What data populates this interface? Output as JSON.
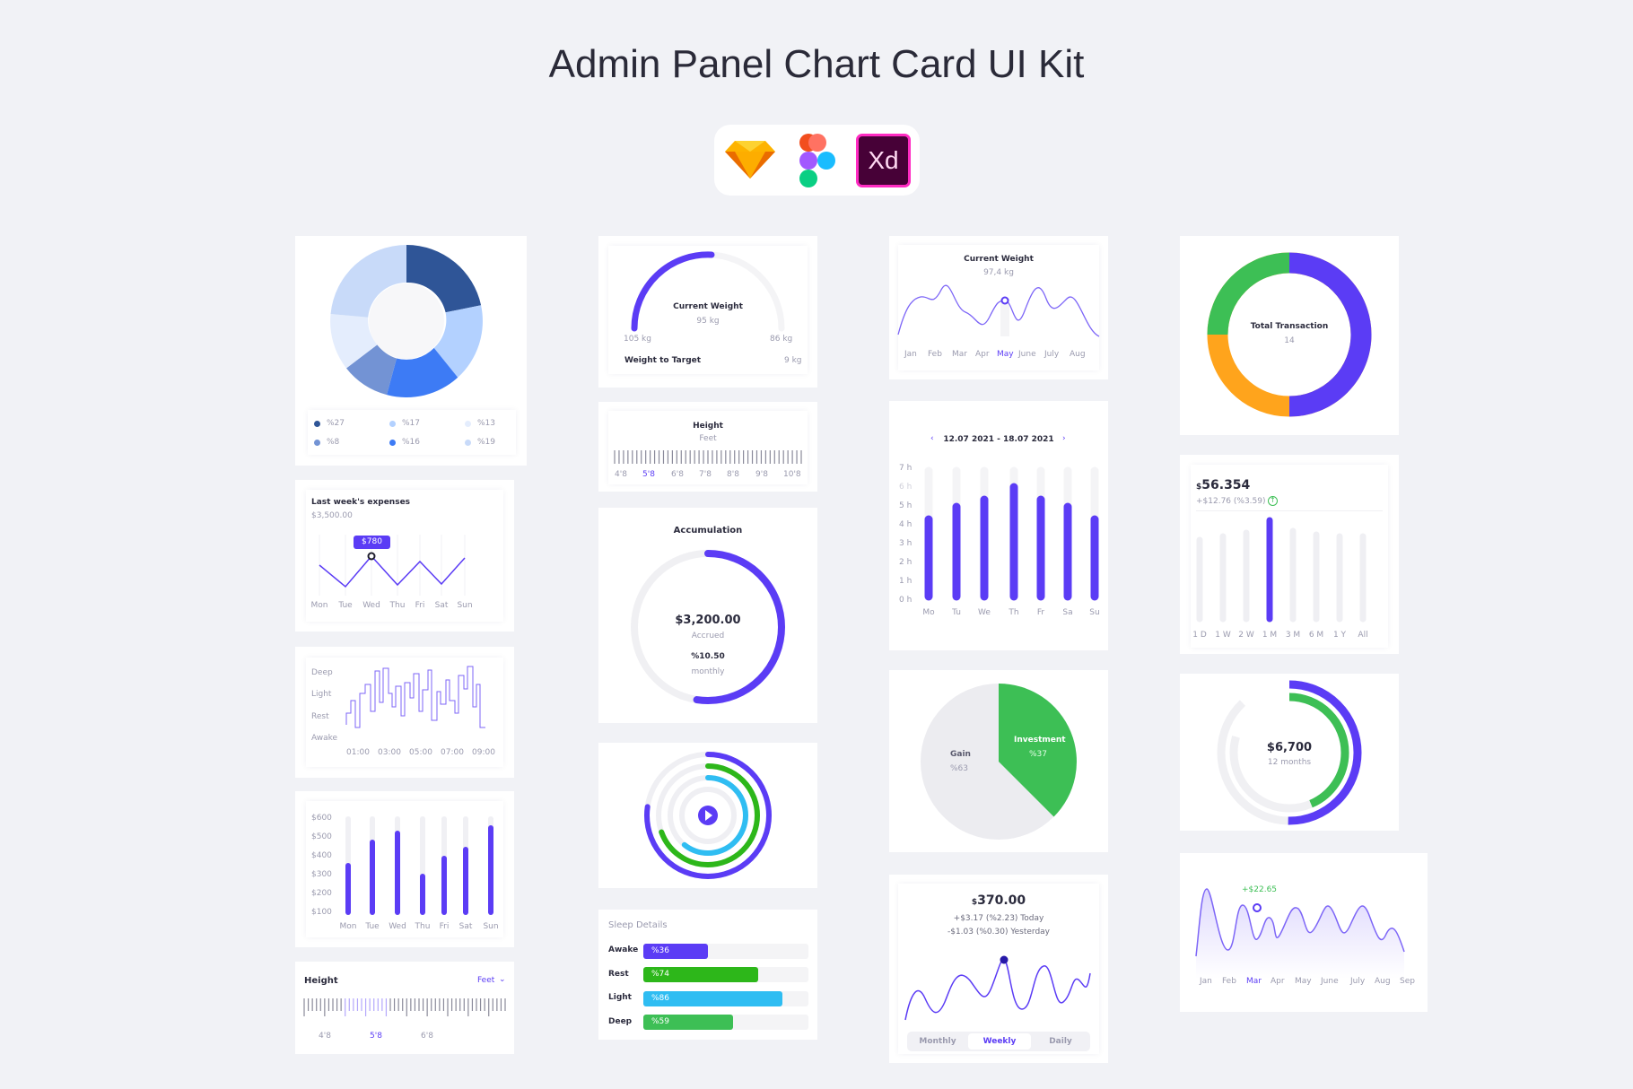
{
  "page": {
    "title": "Admin Panel Chart Card UI Kit"
  },
  "tools": [
    {
      "name": "sketch-icon"
    },
    {
      "name": "figma-icon"
    },
    {
      "name": "xd-icon",
      "label": "Xd"
    }
  ],
  "colors": {
    "bg": "#f1f2f6",
    "accent": "#5b3cf5",
    "green": "#3dbf55",
    "orange": "#ffa41c",
    "blue": "#2f9cf5",
    "light": "#efeff3"
  },
  "donut": {
    "legend": [
      "%27",
      "%17",
      "%13",
      "%8",
      "%16",
      "%19"
    ]
  },
  "expenses": {
    "title": "Last week's expenses",
    "max": "$3,500.00",
    "tooltip": "$780",
    "days": [
      "Mon",
      "Tue",
      "Wed",
      "Thu",
      "Fri",
      "Sat",
      "Sun"
    ]
  },
  "sleep_graph": {
    "levels": [
      "Deep",
      "Light",
      "Rest",
      "Awake"
    ],
    "times": [
      "01:00",
      "03:00",
      "05:00",
      "07:00",
      "09:00"
    ]
  },
  "weekly_bars": {
    "yticks": [
      "$600",
      "$500",
      "$400",
      "$300",
      "$200",
      "$100"
    ],
    "days": [
      "Mon",
      "Tue",
      "Wed",
      "Thu",
      "Fri",
      "Sat",
      "Sun"
    ]
  },
  "height_small": {
    "title": "Height",
    "unit": "Feet",
    "ticks": [
      "4'8",
      "5'8",
      "6'8"
    ]
  },
  "gauge": {
    "title": "Current Weight",
    "value": "95 kg",
    "min": "105 kg",
    "max": "86 kg",
    "target_label": "Weight to Target",
    "target_value": "9 kg"
  },
  "height_ruler": {
    "title": "Height",
    "unit": "Feet",
    "ticks": [
      "4'8",
      "5'8",
      "6'8",
      "7'8",
      "8'8",
      "9'8",
      "10'8"
    ]
  },
  "accumulation": {
    "title": "Accumulation",
    "amount": "$3,200.00",
    "amount_label": "Accrued",
    "percent": "%10.50",
    "percent_label": "monthly"
  },
  "sleep_details": {
    "title": "Sleep Details",
    "rows": [
      {
        "label": "Awake",
        "value": "%36"
      },
      {
        "label": "Rest",
        "value": "%74"
      },
      {
        "label": "Light",
        "value": "%86"
      },
      {
        "label": "Deep",
        "value": "%59"
      }
    ]
  },
  "weight_line": {
    "title": "Current Weight",
    "value": "97,4 kg",
    "months": [
      "Jan",
      "Feb",
      "Mar",
      "Apr",
      "May",
      "June",
      "July",
      "Aug"
    ]
  },
  "hours_bars": {
    "range": "12.07 2021 - 18.07 2021",
    "yticks": [
      "7 h",
      "6 h",
      "5 h",
      "4 h",
      "3 h",
      "2 h",
      "1 h",
      "0 h"
    ],
    "days": [
      "Mo",
      "Tu",
      "We",
      "Th",
      "Fr",
      "Sa",
      "Su"
    ]
  },
  "investment_pie": {
    "gain_label": "Gain",
    "gain_value": "%63",
    "inv_label": "Investment",
    "inv_value": "%37"
  },
  "balance": {
    "currency": "$",
    "amount": "370.00",
    "today": "+$3.17 (%2.23) Today",
    "yesterday": "-$1.03 (%0.30) Yesterday",
    "tabs": [
      "Monthly",
      "Weekly",
      "Daily"
    ]
  },
  "transactions": {
    "title": "Total Transaction",
    "value": "14"
  },
  "stock": {
    "currency": "$",
    "amount": "56.354",
    "change": "+$12.76 (%3.59)",
    "periods": [
      "1 D",
      "1 W",
      "2 W",
      "1 M",
      "3 M",
      "6 M",
      "1 Y",
      "All"
    ]
  },
  "rings": {
    "amount": "$6,700",
    "label": "12 months"
  },
  "area_line": {
    "tooltip": "+$22.65",
    "months": [
      "Jan",
      "Feb",
      "Mar",
      "Apr",
      "May",
      "June",
      "July",
      "Aug",
      "Sep"
    ]
  }
}
